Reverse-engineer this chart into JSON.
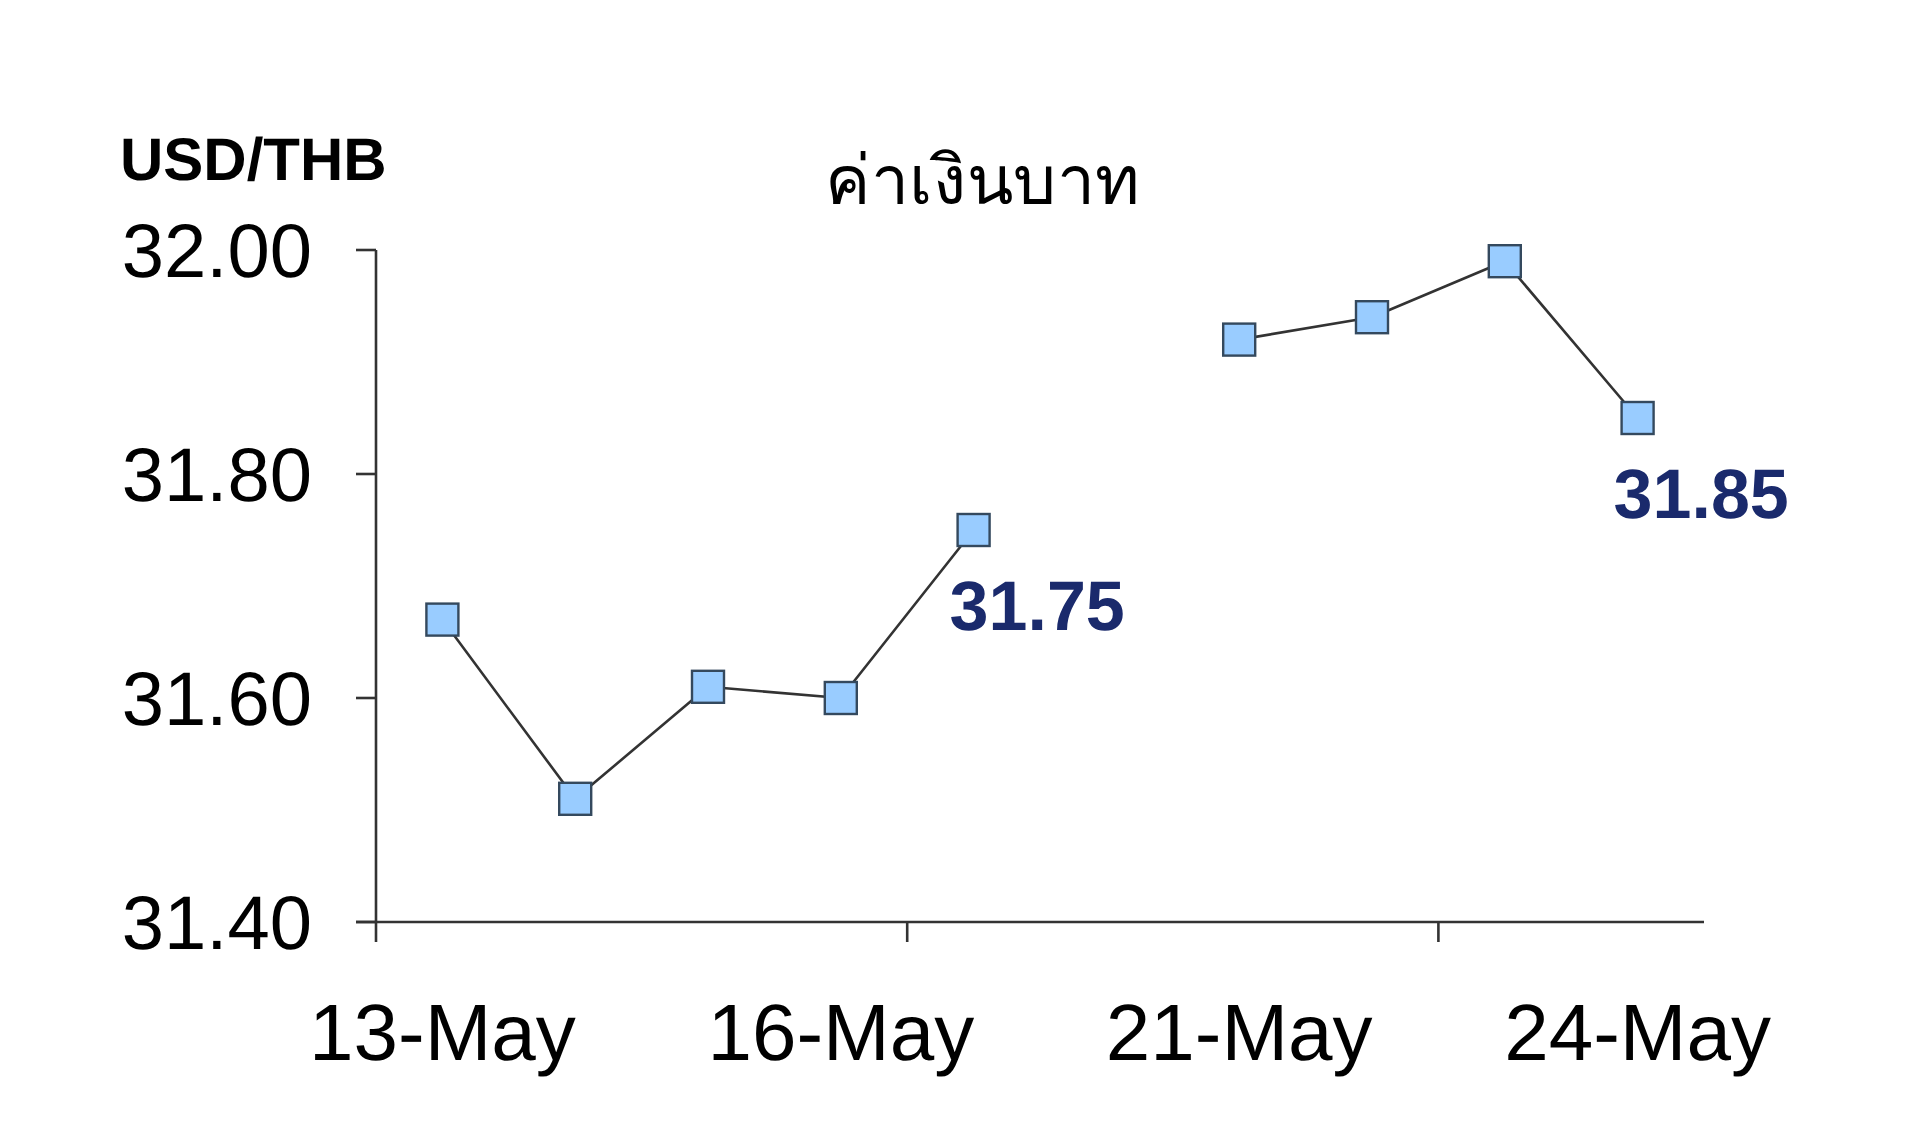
{
  "chart_data": {
    "type": "line",
    "title": "ค่าเงินบาท",
    "ylabel": "USD/THB",
    "categories": [
      "13-May",
      null,
      null,
      "16-May",
      null,
      null,
      "21-May",
      null,
      null,
      "24-May"
    ],
    "values": [
      31.67,
      31.51,
      31.61,
      31.6,
      31.75,
      null,
      31.92,
      31.94,
      31.99,
      31.85
    ],
    "value_labels": [
      null,
      null,
      null,
      null,
      "31.75",
      null,
      null,
      null,
      null,
      "31.85"
    ],
    "color": "#99ccff",
    "marker": "square",
    "line_style": "solid",
    "ylim": [
      31.4,
      32.0
    ],
    "yticks": [
      {
        "value": 31.4,
        "label": "31.40"
      },
      {
        "value": 31.6,
        "label": "31.60"
      },
      {
        "value": 31.8,
        "label": "31.80"
      },
      {
        "value": 32.0,
        "label": "32.00"
      }
    ]
  }
}
